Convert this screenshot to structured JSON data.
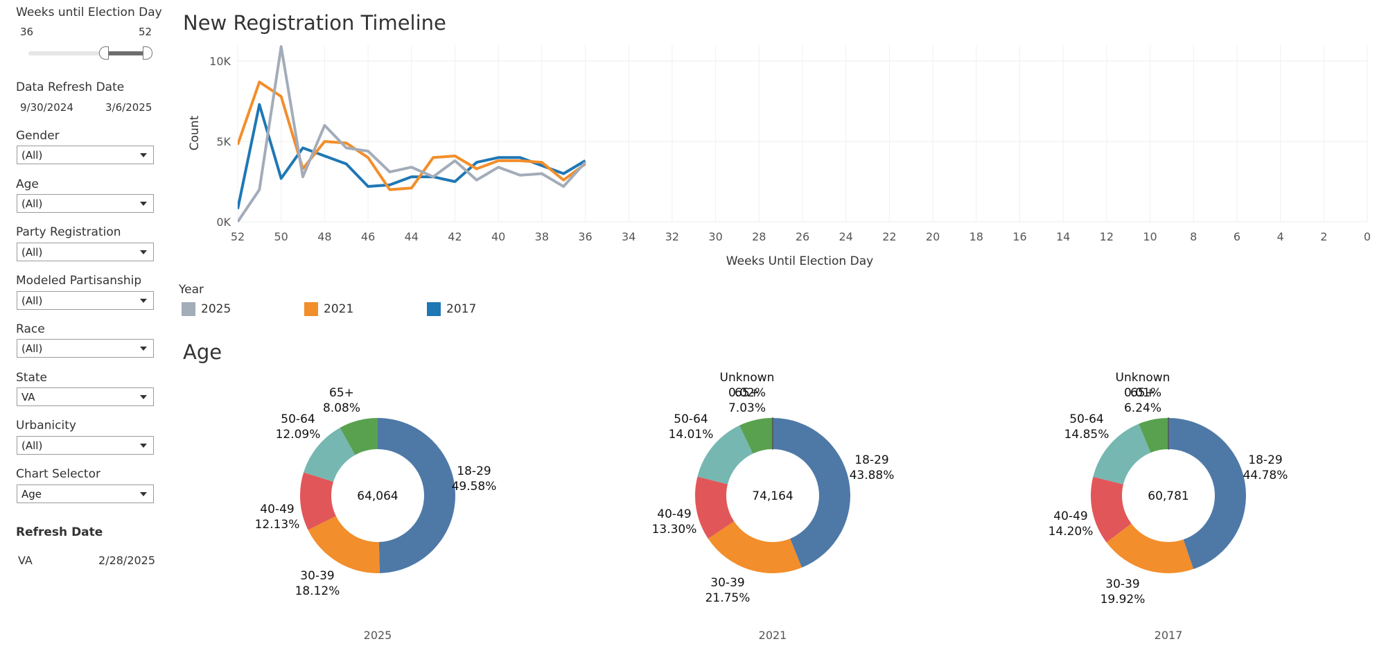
{
  "sidebar": {
    "weeks_label": "Weeks until Election Day",
    "weeks_min": "36",
    "weeks_max": "52",
    "refresh_label": "Data Refresh Date",
    "refresh_start": "9/30/2024",
    "refresh_end": "3/6/2025",
    "filters": [
      {
        "label": "Gender",
        "value": "(All)"
      },
      {
        "label": "Age",
        "value": "(All)"
      },
      {
        "label": "Party Registration",
        "value": "(All)"
      },
      {
        "label": "Modeled Partisanship",
        "value": "(All)"
      },
      {
        "label": "Race",
        "value": "(All)"
      },
      {
        "label": "State",
        "value": "VA"
      },
      {
        "label": "Urbanicity",
        "value": "(All)"
      },
      {
        "label": "Chart Selector",
        "value": "Age"
      }
    ],
    "refresh_heading": "Refresh Date",
    "refresh_state": "VA",
    "refresh_state_date": "2/28/2025"
  },
  "timeline": {
    "title": "New Registration Timeline",
    "legend_title": "Year",
    "legend": [
      {
        "name": "2025",
        "color": "#a3acb9"
      },
      {
        "name": "2021",
        "color": "#f28e2b"
      },
      {
        "name": "2017",
        "color": "#1f77b4"
      }
    ]
  },
  "age": {
    "title": "Age"
  },
  "chart_data": [
    {
      "type": "line",
      "title": "New Registration Timeline",
      "xlabel": "Weeks Until Election Day",
      "ylabel": "Count",
      "xlim": [
        52,
        0
      ],
      "ylim": [
        0,
        11000
      ],
      "x_ticks": [
        52,
        50,
        48,
        46,
        44,
        42,
        40,
        38,
        36,
        34,
        32,
        30,
        28,
        26,
        24,
        22,
        20,
        18,
        16,
        14,
        12,
        10,
        8,
        6,
        4,
        2,
        0
      ],
      "y_ticks": [
        {
          "v": 0,
          "label": "0K"
        },
        {
          "v": 5000,
          "label": "5K"
        },
        {
          "v": 10000,
          "label": "10K"
        }
      ],
      "x": [
        52,
        51,
        50,
        49,
        48,
        47,
        46,
        45,
        44,
        43,
        42,
        41,
        40,
        39,
        38,
        37,
        36
      ],
      "series": [
        {
          "name": "2025",
          "color": "#a3acb9",
          "values": [
            0,
            2000,
            10900,
            2800,
            6000,
            4600,
            4400,
            3100,
            3400,
            2800,
            3800,
            2600,
            3400,
            2900,
            3000,
            2200,
            3700
          ]
        },
        {
          "name": "2021",
          "color": "#f28e2b",
          "values": [
            4800,
            8700,
            7800,
            3300,
            5000,
            4900,
            4000,
            2000,
            2100,
            4000,
            4100,
            3300,
            3800,
            3800,
            3700,
            2600,
            3600
          ]
        },
        {
          "name": "2017",
          "color": "#1f77b4",
          "values": [
            800,
            7300,
            2700,
            4600,
            4100,
            3600,
            2200,
            2300,
            2800,
            2800,
            2500,
            3700,
            4000,
            4000,
            3500,
            3000,
            3800
          ]
        }
      ]
    },
    {
      "type": "pie",
      "title": "2025",
      "total": "64,064",
      "slices": [
        {
          "label": "18-29",
          "value": 49.58,
          "pct": "49.58%",
          "color": "#4e79a7"
        },
        {
          "label": "30-39",
          "value": 18.12,
          "pct": "18.12%",
          "color": "#f28e2b"
        },
        {
          "label": "40-49",
          "value": 12.13,
          "pct": "12.13%",
          "color": "#e15759"
        },
        {
          "label": "50-64",
          "value": 12.09,
          "pct": "12.09%",
          "color": "#76b7b2"
        },
        {
          "label": "65+",
          "value": 8.08,
          "pct": "8.08%",
          "color": "#59a14f"
        }
      ]
    },
    {
      "type": "pie",
      "title": "2021",
      "total": "74,164",
      "slices": [
        {
          "label": "18-29",
          "value": 43.88,
          "pct": "43.88%",
          "color": "#4e79a7"
        },
        {
          "label": "30-39",
          "value": 21.75,
          "pct": "21.75%",
          "color": "#f28e2b"
        },
        {
          "label": "40-49",
          "value": 13.3,
          "pct": "13.30%",
          "color": "#e15759"
        },
        {
          "label": "50-64",
          "value": 14.01,
          "pct": "14.01%",
          "color": "#76b7b2"
        },
        {
          "label": "65+",
          "value": 7.03,
          "pct": "7.03%",
          "color": "#59a14f"
        },
        {
          "label": "Unknown",
          "value": 0.02,
          "pct": "0.02%",
          "color": "#555555"
        }
      ]
    },
    {
      "type": "pie",
      "title": "2017",
      "total": "60,781",
      "slices": [
        {
          "label": "18-29",
          "value": 44.78,
          "pct": "44.78%",
          "color": "#4e79a7"
        },
        {
          "label": "30-39",
          "value": 19.92,
          "pct": "19.92%",
          "color": "#f28e2b"
        },
        {
          "label": "40-49",
          "value": 14.2,
          "pct": "14.20%",
          "color": "#e15759"
        },
        {
          "label": "50-64",
          "value": 14.85,
          "pct": "14.85%",
          "color": "#76b7b2"
        },
        {
          "label": "65+",
          "value": 6.24,
          "pct": "6.24%",
          "color": "#59a14f"
        },
        {
          "label": "Unknown",
          "value": 0.01,
          "pct": "0.01%",
          "color": "#555555"
        }
      ]
    }
  ]
}
